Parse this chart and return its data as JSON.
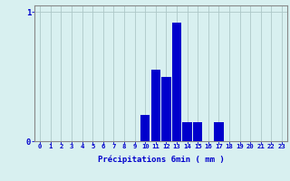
{
  "hours": [
    0,
    1,
    2,
    3,
    4,
    5,
    6,
    7,
    8,
    9,
    10,
    11,
    12,
    13,
    14,
    15,
    16,
    17,
    18,
    19,
    20,
    21,
    22,
    23
  ],
  "values": [
    0,
    0,
    0,
    0,
    0,
    0,
    0,
    0,
    0,
    0,
    0.2,
    0.55,
    0.5,
    0.92,
    0.15,
    0.15,
    0,
    0.15,
    0,
    0,
    0,
    0,
    0,
    0
  ],
  "bar_color": "#0000cc",
  "bg_color": "#d8f0f0",
  "grid_color": "#aec8c8",
  "axis_color": "#888888",
  "text_color": "#0000cc",
  "xlabel": "Précipitations 6min ( mm )",
  "ylim": [
    0,
    1.05
  ],
  "yticks": [
    0,
    1
  ],
  "ytick_labels": [
    "0",
    "1"
  ],
  "xticks": [
    0,
    1,
    2,
    3,
    4,
    5,
    6,
    7,
    8,
    9,
    10,
    11,
    12,
    13,
    14,
    15,
    16,
    17,
    18,
    19,
    20,
    21,
    22,
    23
  ],
  "bar_width": 0.9,
  "figsize": [
    3.2,
    2.0
  ],
  "dpi": 100,
  "xlabel_fontsize": 6.5,
  "tick_fontsize": 5.2,
  "ytick_fontsize": 6.5
}
